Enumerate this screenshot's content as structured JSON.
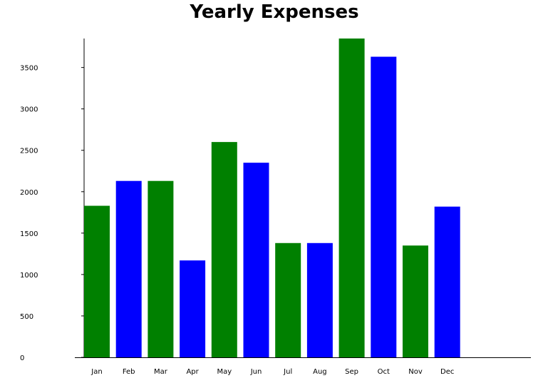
{
  "chart_data": {
    "type": "bar",
    "title": "Yearly Expenses",
    "xlabel": "",
    "ylabel": "",
    "categories": [
      "Jan",
      "Feb",
      "Mar",
      "Apr",
      "May",
      "Jun",
      "Jul",
      "Aug",
      "Sep",
      "Oct",
      "Nov",
      "Dec"
    ],
    "values": [
      1830,
      2130,
      2130,
      1170,
      2600,
      2350,
      1380,
      1380,
      3850,
      3630,
      1350,
      1820
    ],
    "bar_colors": [
      "#008000",
      "#0000ff",
      "#008000",
      "#0000ff",
      "#008000",
      "#0000ff",
      "#008000",
      "#0000ff",
      "#008000",
      "#0000ff",
      "#008000",
      "#0000ff"
    ],
    "yticks": [
      "0",
      "500",
      "1000",
      "1500",
      "2000",
      "2500",
      "3000",
      "3500"
    ],
    "ylim": [
      0,
      3850
    ],
    "grid": false,
    "legend": "none"
  }
}
